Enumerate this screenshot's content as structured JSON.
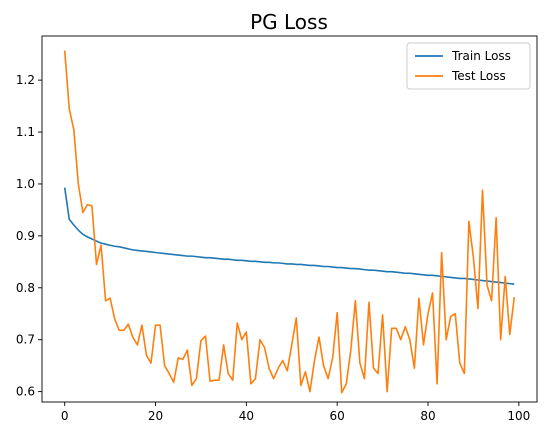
{
  "chart_data": {
    "type": "line",
    "title": "PG Loss",
    "xlabel": "",
    "ylabel": "",
    "xlim": [
      -5,
      104
    ],
    "ylim": [
      0.58,
      1.285
    ],
    "xticks": [
      0,
      20,
      40,
      60,
      80,
      100
    ],
    "yticks": [
      0.6,
      0.7,
      0.8,
      0.9,
      1.0,
      1.1,
      1.2
    ],
    "ytick_labels": [
      "0.6",
      "0.7",
      "0.8",
      "0.9",
      "1.0",
      "1.1",
      "1.2"
    ],
    "grid": false,
    "legend": "top-right",
    "series": [
      {
        "name": "Train Loss",
        "color": "#1f77b4",
        "x": [
          0,
          1,
          2,
          3,
          4,
          5,
          6,
          7,
          8,
          9,
          10,
          11,
          12,
          13,
          14,
          15,
          16,
          17,
          18,
          19,
          20,
          21,
          22,
          23,
          24,
          25,
          26,
          27,
          28,
          29,
          30,
          31,
          32,
          33,
          34,
          35,
          36,
          37,
          38,
          39,
          40,
          41,
          42,
          43,
          44,
          45,
          46,
          47,
          48,
          49,
          50,
          51,
          52,
          53,
          54,
          55,
          56,
          57,
          58,
          59,
          60,
          61,
          62,
          63,
          64,
          65,
          66,
          67,
          68,
          69,
          70,
          71,
          72,
          73,
          74,
          75,
          76,
          77,
          78,
          79,
          80,
          81,
          82,
          83,
          84,
          85,
          86,
          87,
          88,
          89,
          90,
          91,
          92,
          93,
          94,
          95,
          96,
          97,
          98,
          99
        ],
        "values": [
          0.993,
          0.932,
          0.921,
          0.911,
          0.903,
          0.898,
          0.894,
          0.89,
          0.886,
          0.884,
          0.882,
          0.88,
          0.879,
          0.877,
          0.875,
          0.873,
          0.872,
          0.871,
          0.87,
          0.869,
          0.868,
          0.867,
          0.866,
          0.865,
          0.864,
          0.863,
          0.862,
          0.861,
          0.861,
          0.86,
          0.859,
          0.858,
          0.858,
          0.857,
          0.856,
          0.855,
          0.855,
          0.854,
          0.853,
          0.853,
          0.852,
          0.851,
          0.851,
          0.85,
          0.849,
          0.849,
          0.848,
          0.848,
          0.847,
          0.846,
          0.846,
          0.845,
          0.845,
          0.844,
          0.843,
          0.843,
          0.842,
          0.841,
          0.841,
          0.84,
          0.839,
          0.839,
          0.838,
          0.837,
          0.837,
          0.836,
          0.835,
          0.834,
          0.834,
          0.833,
          0.832,
          0.831,
          0.831,
          0.83,
          0.829,
          0.828,
          0.828,
          0.827,
          0.826,
          0.825,
          0.824,
          0.824,
          0.823,
          0.822,
          0.821,
          0.82,
          0.819,
          0.818,
          0.818,
          0.817,
          0.816,
          0.815,
          0.814,
          0.813,
          0.812,
          0.811,
          0.81,
          0.809,
          0.808,
          0.807
        ]
      },
      {
        "name": "Test Loss",
        "color": "#ff7f0e",
        "x": [
          0,
          1,
          2,
          3,
          4,
          5,
          6,
          7,
          8,
          9,
          10,
          11,
          12,
          13,
          14,
          15,
          16,
          17,
          18,
          19,
          20,
          21,
          22,
          23,
          24,
          25,
          26,
          27,
          28,
          29,
          30,
          31,
          32,
          33,
          34,
          35,
          36,
          37,
          38,
          39,
          40,
          41,
          42,
          43,
          44,
          45,
          46,
          47,
          48,
          49,
          50,
          51,
          52,
          53,
          54,
          55,
          56,
          57,
          58,
          59,
          60,
          61,
          62,
          63,
          64,
          65,
          66,
          67,
          68,
          69,
          70,
          71,
          72,
          73,
          74,
          75,
          76,
          77,
          78,
          79,
          80,
          81,
          82,
          83,
          84,
          85,
          86,
          87,
          88,
          89,
          90,
          91,
          92,
          93,
          94,
          95,
          96,
          97,
          98,
          99
        ],
        "values": [
          1.257,
          1.145,
          1.105,
          1.0,
          0.945,
          0.96,
          0.958,
          0.845,
          0.882,
          0.775,
          0.78,
          0.74,
          0.718,
          0.718,
          0.73,
          0.705,
          0.69,
          0.728,
          0.67,
          0.655,
          0.728,
          0.728,
          0.65,
          0.635,
          0.618,
          0.665,
          0.662,
          0.68,
          0.612,
          0.625,
          0.698,
          0.707,
          0.62,
          0.622,
          0.622,
          0.69,
          0.635,
          0.622,
          0.732,
          0.7,
          0.715,
          0.615,
          0.625,
          0.7,
          0.685,
          0.645,
          0.625,
          0.645,
          0.66,
          0.64,
          0.69,
          0.742,
          0.612,
          0.638,
          0.6,
          0.66,
          0.705,
          0.65,
          0.625,
          0.665,
          0.752,
          0.598,
          0.615,
          0.68,
          0.775,
          0.655,
          0.625,
          0.772,
          0.645,
          0.635,
          0.748,
          0.6,
          0.722,
          0.722,
          0.7,
          0.725,
          0.7,
          0.645,
          0.78,
          0.69,
          0.75,
          0.79,
          0.615,
          0.868,
          0.7,
          0.745,
          0.75,
          0.655,
          0.635,
          0.928,
          0.858,
          0.76,
          0.988,
          0.805,
          0.775,
          0.935,
          0.7,
          0.822,
          0.71,
          0.782
        ]
      }
    ]
  }
}
